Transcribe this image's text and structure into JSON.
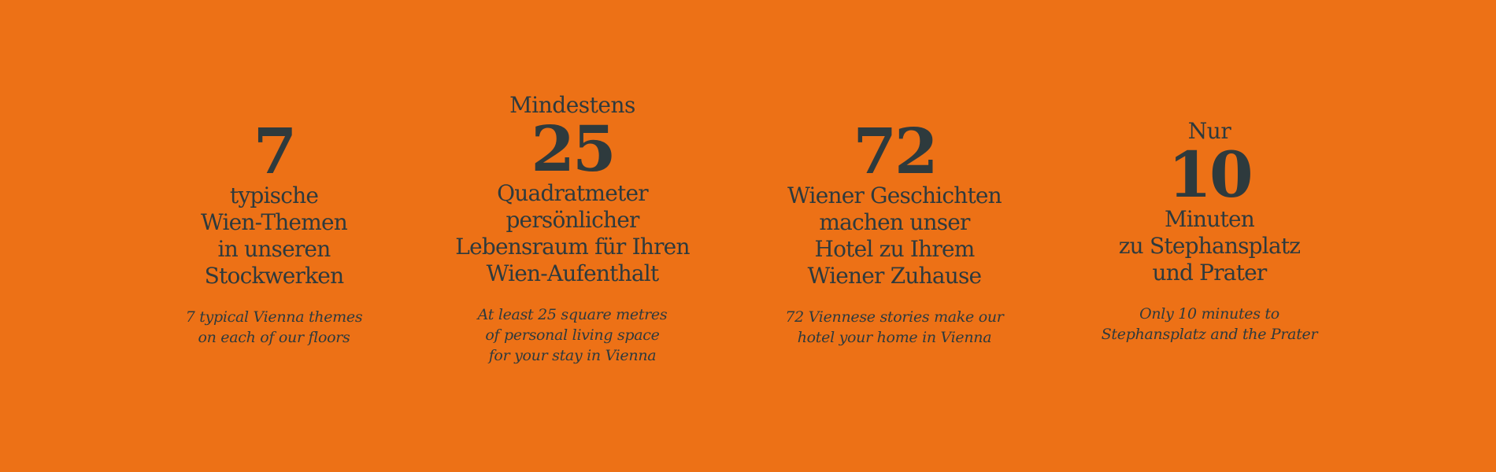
{
  "stats": [
    {
      "prefix": "",
      "number": "7",
      "german": [
        "typische",
        "Wien-Themen",
        "in unseren",
        "Stockwerken"
      ],
      "english": [
        "7 typical Vienna themes",
        "on each of our floors"
      ]
    },
    {
      "prefix": "Mindestens",
      "number": "25",
      "german": [
        "Quadratmeter",
        "persönlicher",
        "Lebensraum für Ihren",
        "Wien-Aufenthalt"
      ],
      "english": [
        "At least 25 square metres",
        "of personal living space",
        "for your stay in Vienna"
      ]
    },
    {
      "prefix": "",
      "number": "72",
      "german": [
        "Wiener Geschichten",
        "machen unser",
        "Hotel zu Ihrem",
        "Wiener Zuhause"
      ],
      "english": [
        "72 Viennese stories make our",
        "hotel your home in Vienna"
      ]
    },
    {
      "prefix": "Nur",
      "number": "10",
      "german": [
        "Minuten",
        "zu Stephansplatz",
        "und Prater"
      ],
      "english": [
        "Only 10 minutes to",
        "Stephansplatz and the Prater"
      ]
    }
  ],
  "colors": {
    "background": "#ED7116",
    "text": "#2E3A3D"
  }
}
